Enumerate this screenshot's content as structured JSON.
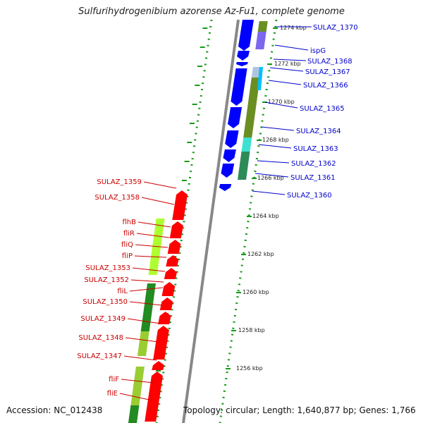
{
  "title": "Sulfurihydrogenibium azorense Az-Fu1, complete genome",
  "accession": "Accession: NC_012438",
  "topology": "Topology: circular; Length: 1,640,877 bp; Genes: 1,766",
  "colors": {
    "forward_gene": "#ff0000",
    "reverse_gene": "#0000ff",
    "forward_label": "#cc0000",
    "reverse_label": "#0000cc",
    "backbone": "#888888",
    "dotted_guide": "#1a9a1a",
    "ruler_tick": "#1a9a1a"
  },
  "kbp_ticks": [
    "1274 kbp",
    "1272 kbp",
    "1270 kbp",
    "1268 kbp",
    "1266 kbp",
    "1264 kbp",
    "1262 kbp",
    "1260 kbp",
    "1258 kbp",
    "1256 kbp"
  ],
  "reverse_labels": [
    "SULAZ_1370",
    "ispG",
    "SULAZ_1368",
    "SULAZ_1367",
    "SULAZ_1366",
    "SULAZ_1365",
    "SULAZ_1364",
    "SULAZ_1363",
    "SULAZ_1362",
    "SULAZ_1361",
    "SULAZ_1360"
  ],
  "forward_labels": [
    "SULAZ_1359",
    "SULAZ_1358",
    "flhB",
    "fliR",
    "fliQ",
    "fliP",
    "SULAZ_1353",
    "SULAZ_1352",
    "fliL",
    "SULAZ_1350",
    "SULAZ_1349",
    "SULAZ_1348",
    "SULAZ_1347",
    "fliF",
    "fliE"
  ]
}
